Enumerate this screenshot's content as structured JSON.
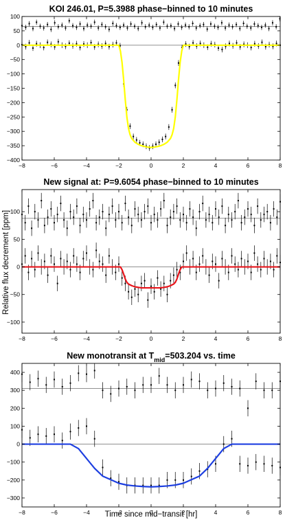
{
  "figure": {
    "ylabel": "Relative flux decrement [ppm]",
    "xlabel": "Time since mid−transit [hr]"
  },
  "chart_data": [
    {
      "type": "scatter",
      "title": "KOI 246.01, P=5.3988 phase−binned to 10 minutes",
      "xlim": [
        -8,
        8
      ],
      "ylim": [
        -400,
        100
      ],
      "xticks": [
        -8,
        -6,
        -4,
        -2,
        0,
        2,
        4,
        6,
        8
      ],
      "yticks": [
        100,
        50,
        0,
        -50,
        -100,
        -150,
        -200,
        -250,
        -300,
        -350,
        -400
      ],
      "hlines": [
        65,
        0
      ],
      "model_color": "#ffff00",
      "model": {
        "x": [
          -8,
          -2.0,
          -1.9,
          -1.8,
          -1.7,
          -1.6,
          -1.5,
          -1.4,
          -1.3,
          -1.2,
          -1.0,
          -0.8,
          -0.6,
          -0.4,
          -0.2,
          0,
          0.2,
          0.4,
          0.6,
          0.8,
          1.0,
          1.2,
          1.3,
          1.4,
          1.5,
          1.6,
          1.7,
          1.8,
          1.9,
          2.0,
          8
        ],
        "y": [
          0,
          0,
          -20,
          -60,
          -120,
          -190,
          -250,
          -290,
          -312,
          -325,
          -338,
          -345,
          -350,
          -353,
          -355,
          -356,
          -355,
          -353,
          -350,
          -345,
          -338,
          -325,
          -312,
          -290,
          -250,
          -190,
          -120,
          -60,
          -20,
          0,
          0
        ]
      },
      "series": [
        {
          "x": [
            -8.0,
            -7.77,
            -7.55,
            -7.32,
            -7.1,
            -6.87,
            -6.65,
            -6.42,
            -6.2,
            -5.97,
            -5.75,
            -5.52,
            -5.3,
            -5.07,
            -4.85,
            -4.62,
            -4.4,
            -4.17,
            -3.95,
            -3.72,
            -3.5,
            -3.27,
            -3.05,
            -2.82,
            -2.6,
            -2.37,
            -2.15,
            -1.92,
            -1.7,
            -1.47,
            -1.25,
            -1.02,
            -0.8,
            -0.57,
            -0.35,
            -0.12,
            0.1,
            0.33,
            0.55,
            0.78,
            1.0,
            1.23,
            1.45,
            1.68,
            1.9,
            2.13,
            2.35,
            2.58,
            2.8,
            3.03,
            3.25,
            3.48,
            3.7,
            3.93,
            4.15,
            4.38,
            4.6,
            4.83,
            5.05,
            5.28,
            5.5,
            5.73,
            5.95,
            6.18,
            6.4,
            6.63,
            6.85,
            7.08,
            7.3,
            7.53,
            7.75,
            7.98
          ],
          "y": [
            68,
            62,
            75,
            58,
            80,
            66,
            60,
            72,
            55,
            78,
            64,
            70,
            60,
            85,
            68,
            62,
            74,
            58,
            70,
            66,
            80,
            60,
            72,
            64,
            55,
            76,
            68,
            62,
            70,
            60,
            74,
            66,
            58,
            78,
            64,
            70,
            62,
            72,
            60,
            80,
            66,
            68,
            58,
            74,
            62,
            70,
            64,
            76,
            60,
            68,
            72,
            56,
            74,
            66,
            62,
            78,
            60,
            70,
            64,
            72,
            58,
            76,
            66,
            60,
            74,
            68,
            62,
            70,
            58,
            78,
            64,
            92
          ],
          "err": 9
        },
        {
          "x": [
            -8.0,
            -7.77,
            -7.55,
            -7.32,
            -7.1,
            -6.87,
            -6.65,
            -6.42,
            -6.2,
            -5.97,
            -5.75,
            -5.52,
            -5.3,
            -5.07,
            -4.85,
            -4.62,
            -4.4,
            -4.17,
            -3.95,
            -3.72,
            -3.5,
            -3.27,
            -3.05,
            -2.82,
            -2.6,
            -2.37,
            -2.15,
            -1.92,
            -1.7,
            -1.5,
            -1.3,
            -1.1,
            -0.9,
            -0.7,
            -0.5,
            -0.3,
            -0.1,
            0.1,
            0.3,
            0.5,
            0.7,
            0.9,
            1.1,
            1.3,
            1.5,
            1.7,
            1.92,
            2.15,
            2.37,
            2.6,
            2.82,
            3.05,
            3.27,
            3.5,
            3.72,
            3.95,
            4.17,
            4.4,
            4.62,
            4.85,
            5.07,
            5.3,
            5.52,
            5.75,
            5.97,
            6.2,
            6.42,
            6.65,
            6.87,
            7.1,
            7.32,
            7.55,
            7.77,
            8.0
          ],
          "y": [
            2,
            -5,
            8,
            -10,
            5,
            0,
            -8,
            10,
            3,
            -6,
            12,
            0,
            -4,
            7,
            -2,
            5,
            -8,
            4,
            0,
            9,
            -6,
            3,
            -3,
            6,
            -5,
            2,
            8,
            -2,
            -135,
            -225,
            -282,
            -318,
            -330,
            -340,
            -345,
            -352,
            -358,
            -352,
            -345,
            -338,
            -328,
            -318,
            -285,
            -225,
            -140,
            -62,
            -8,
            4,
            -5,
            8,
            -3,
            6,
            0,
            -7,
            5,
            2,
            -10,
            -15,
            -4,
            6,
            -2,
            8,
            -6,
            3,
            0,
            -8,
            5,
            -3,
            10,
            -5,
            2,
            -4,
            6,
            0
          ],
          "err": 10
        }
      ]
    },
    {
      "type": "scatter",
      "title": "New signal at: P=9.6054 phase−binned to 10 minutes",
      "xlim": [
        -8,
        8
      ],
      "ylim": [
        -120,
        140
      ],
      "xticks": [
        -8,
        -6,
        -4,
        -2,
        0,
        2,
        4,
        6,
        8
      ],
      "yticks": [
        100,
        50,
        0,
        -50,
        -100
      ],
      "hlines": [
        88,
        0
      ],
      "model_color": "#e8151b",
      "model": {
        "x": [
          -8,
          -1.9,
          -1.8,
          -1.7,
          -1.6,
          -1.5,
          -1.4,
          -1.2,
          -1.0,
          -0.8,
          -0.6,
          -0.4,
          -0.2,
          0,
          0.2,
          0.4,
          0.6,
          0.8,
          1.0,
          1.2,
          1.4,
          1.5,
          1.6,
          1.7,
          1.8,
          1.9,
          8
        ],
        "y": [
          0,
          0,
          -5,
          -13,
          -22,
          -28,
          -31,
          -34,
          -36,
          -37,
          -38,
          -38,
          -38,
          -38,
          -38,
          -38,
          -38,
          -37,
          -36,
          -34,
          -31,
          -28,
          -22,
          -13,
          -5,
          0,
          0
        ],
        "y_note": ""
      },
      "series": [
        {
          "x": [
            -8.0,
            -7.8,
            -7.6,
            -7.4,
            -7.2,
            -7.0,
            -6.8,
            -6.6,
            -6.4,
            -6.2,
            -6.0,
            -5.8,
            -5.6,
            -5.4,
            -5.2,
            -5.0,
            -4.8,
            -4.6,
            -4.4,
            -4.2,
            -4.0,
            -3.8,
            -3.6,
            -3.4,
            -3.2,
            -3.0,
            -2.8,
            -2.6,
            -2.4,
            -2.2,
            -2.0,
            -1.8,
            -1.6,
            -1.4,
            -1.2,
            -1.0,
            -0.8,
            -0.6,
            -0.4,
            -0.2,
            0.0,
            0.2,
            0.4,
            0.6,
            0.8,
            1.0,
            1.2,
            1.4,
            1.6,
            1.8,
            2.0,
            2.2,
            2.4,
            2.6,
            2.8,
            3.0,
            3.2,
            3.4,
            3.6,
            3.8,
            4.0,
            4.2,
            4.4,
            4.6,
            4.8,
            5.0,
            5.2,
            5.4,
            5.6,
            5.8,
            6.0,
            6.2,
            6.4,
            6.6,
            6.8,
            7.0,
            7.2,
            7.4,
            7.6,
            7.8,
            8.0
          ],
          "y": [
            95,
            80,
            110,
            70,
            100,
            85,
            120,
            75,
            90,
            105,
            80,
            95,
            115,
            85,
            70,
            100,
            90,
            110,
            75,
            95,
            85,
            105,
            120,
            80,
            90,
            100,
            70,
            95,
            110,
            85,
            100,
            80,
            115,
            90,
            75,
            105,
            95,
            85,
            100,
            110,
            80,
            95,
            85,
            105,
            120,
            75,
            90,
            100,
            110,
            85,
            95,
            80,
            105,
            90,
            70,
            100,
            115,
            85,
            95,
            80,
            105,
            90,
            110,
            75,
            95,
            85,
            100,
            120,
            80,
            90,
            105,
            95,
            75,
            110,
            85,
            95,
            100,
            80,
            105,
            90,
            118
          ],
          "err": 14
        },
        {
          "x": [
            -8.0,
            -7.8,
            -7.6,
            -7.4,
            -7.2,
            -7.0,
            -6.8,
            -6.6,
            -6.4,
            -6.2,
            -6.0,
            -5.8,
            -5.6,
            -5.4,
            -5.2,
            -5.0,
            -4.8,
            -4.6,
            -4.4,
            -4.2,
            -4.0,
            -3.8,
            -3.6,
            -3.4,
            -3.2,
            -3.0,
            -2.8,
            -2.6,
            -2.4,
            -2.2,
            -2.0,
            -1.8,
            -1.6,
            -1.4,
            -1.2,
            -1.0,
            -0.8,
            -0.6,
            -0.4,
            -0.2,
            0.0,
            0.2,
            0.4,
            0.6,
            0.8,
            1.0,
            1.2,
            1.4,
            1.6,
            1.8,
            2.0,
            2.2,
            2.4,
            2.6,
            2.8,
            3.0,
            3.2,
            3.4,
            3.6,
            3.8,
            4.0,
            4.2,
            4.4,
            4.6,
            4.8,
            5.0,
            5.2,
            5.4,
            5.6,
            5.8,
            6.0,
            6.2,
            6.4,
            6.6,
            6.8,
            7.0,
            7.2,
            7.4,
            7.6,
            7.8,
            8.0
          ],
          "y": [
            5,
            20,
            -10,
            15,
            -5,
            25,
            0,
            10,
            -15,
            20,
            5,
            -30,
            15,
            0,
            10,
            -5,
            20,
            5,
            -10,
            15,
            25,
            0,
            -5,
            30,
            10,
            5,
            -15,
            20,
            0,
            -10,
            5,
            -20,
            -30,
            -45,
            -55,
            -40,
            -50,
            -30,
            -25,
            -60,
            -35,
            -45,
            -20,
            -40,
            -30,
            -50,
            -25,
            -15,
            -5,
            -10,
            10,
            25,
            0,
            15,
            -10,
            5,
            20,
            0,
            -15,
            10,
            5,
            -25,
            15,
            0,
            -10,
            20,
            5,
            -5,
            15,
            0,
            10,
            -10,
            25,
            5,
            -5,
            15,
            0,
            10,
            -5,
            20,
            8
          ],
          "err": 14
        }
      ]
    },
    {
      "type": "scatter",
      "title": "New monotransit at T",
      "title_sub": "mid",
      "title_rest": "=503.204 vs. time",
      "xlim": [
        -8,
        8
      ],
      "ylim": [
        -350,
        450
      ],
      "xticks": [
        -8,
        -6,
        -4,
        -2,
        0,
        2,
        4,
        6,
        8
      ],
      "yticks": [
        400,
        300,
        200,
        100,
        0,
        -100,
        -200,
        -300
      ],
      "hlines": [
        310,
        0
      ],
      "model_color": "#1d3fe0",
      "model": {
        "x": [
          -8,
          -5.0,
          -4.5,
          -4.0,
          -3.5,
          -3.0,
          -2.5,
          -2.0,
          -1.5,
          -1.0,
          -0.5,
          0,
          0.5,
          1.0,
          1.5,
          2.0,
          2.5,
          3.0,
          3.5,
          4.0,
          4.5,
          5.0,
          8
        ],
        "y": [
          0,
          0,
          -25,
          -80,
          -135,
          -178,
          -198,
          -218,
          -228,
          -233,
          -236,
          -238,
          -236,
          -233,
          -228,
          -218,
          -198,
          -178,
          -135,
          -80,
          -25,
          0,
          0
        ]
      },
      "series": [
        {
          "x": [
            -8.0,
            -7.5,
            -7.0,
            -6.5,
            -6.0,
            -5.5,
            -5.0,
            -4.5,
            -4.0,
            -3.5,
            -3.0,
            -2.5,
            -2.0,
            -1.5,
            -1.0,
            -0.5,
            0.0,
            0.5,
            1.0,
            1.5,
            2.0,
            2.5,
            3.0,
            3.5,
            4.0,
            4.5,
            5.0,
            5.5,
            6.0,
            6.5,
            7.0,
            7.5,
            8.0
          ],
          "y": [
            390,
            345,
            365,
            330,
            360,
            320,
            340,
            395,
            390,
            410,
            300,
            280,
            310,
            320,
            300,
            330,
            330,
            380,
            330,
            300,
            330,
            360,
            350,
            300,
            310,
            340,
            320,
            310,
            200,
            350,
            300,
            300,
            350
          ],
          "err": 45
        },
        {
          "x": [
            -8.0,
            -7.5,
            -7.0,
            -6.5,
            -6.0,
            -5.5,
            -5.0,
            -4.5,
            -4.0,
            -3.5,
            -3.0,
            -2.5,
            -2.0,
            -1.5,
            -1.0,
            -0.5,
            0.0,
            0.5,
            1.0,
            1.5,
            2.0,
            2.5,
            3.0,
            3.5,
            4.0,
            4.5,
            5.0,
            5.5,
            6.0,
            6.5,
            7.0,
            7.5,
            8.0
          ],
          "y": [
            80,
            35,
            55,
            45,
            55,
            20,
            70,
            90,
            100,
            30,
            -130,
            -190,
            -210,
            -230,
            -230,
            -230,
            -230,
            -230,
            -200,
            -200,
            -200,
            -180,
            -150,
            -140,
            -110,
            0,
            30,
            -110,
            -120,
            -100,
            -110,
            -120,
            -130
          ],
          "err": 45
        }
      ]
    }
  ]
}
